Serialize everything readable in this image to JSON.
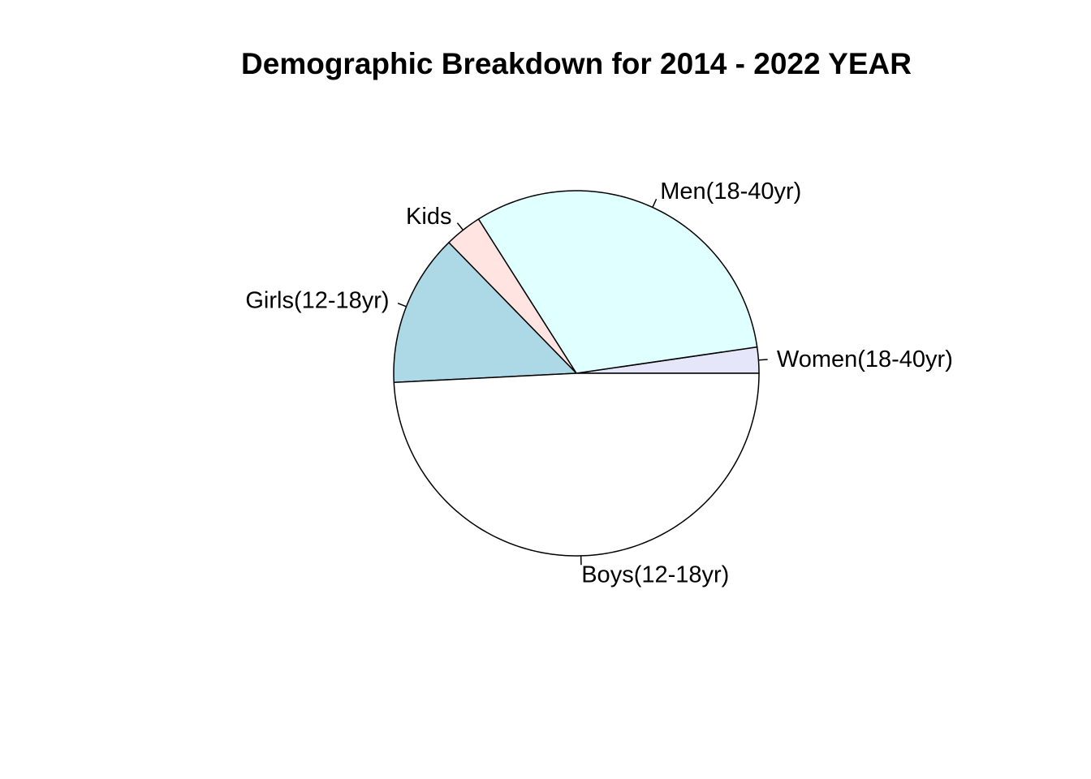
{
  "chart_data": {
    "type": "pie",
    "title": "Demographic Breakdown for 2014 - 2022 YEAR",
    "slices": [
      {
        "label": "Women(18-40yr)",
        "value": 2.3,
        "color": "#e6e6fa"
      },
      {
        "label": "Men(18-40yr)",
        "value": 31.7,
        "color": "#e0ffff"
      },
      {
        "label": "Kids",
        "value": 3.3,
        "color": "#ffe4e1"
      },
      {
        "label": "Girls(12-18yr)",
        "value": 13.5,
        "color": "#add8e6"
      },
      {
        "label": "Boys(12-18yr)",
        "value": 49.2,
        "color": "#ffffff"
      }
    ],
    "start": "3 o'clock",
    "direction": "counterclockwise",
    "legend": "none"
  }
}
